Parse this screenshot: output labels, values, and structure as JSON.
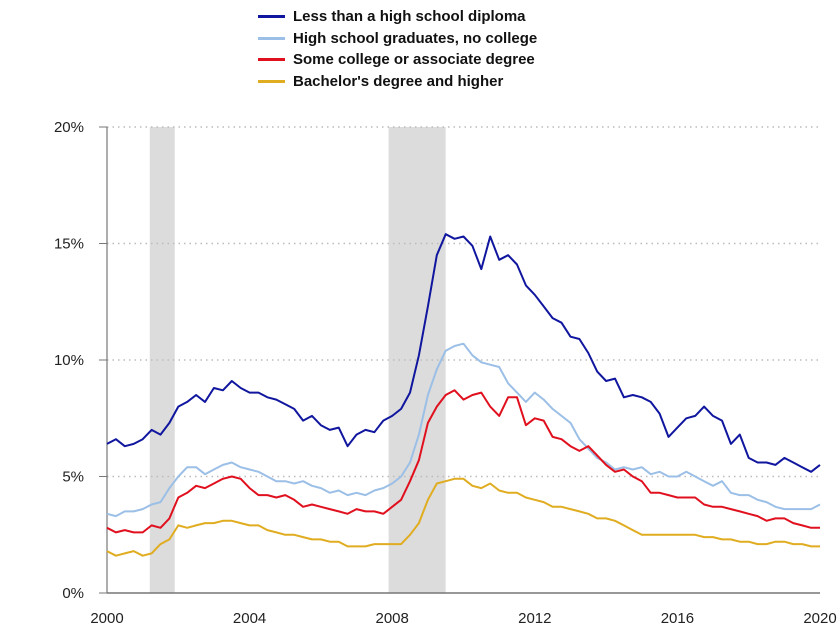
{
  "chart_data": {
    "type": "line",
    "title": "",
    "xlabel": "",
    "ylabel": "",
    "xlim": [
      2000,
      2020
    ],
    "ylim": [
      0,
      20
    ],
    "x_ticks": [
      2000,
      2004,
      2008,
      2012,
      2016,
      2020
    ],
    "x_tick_labels": [
      "2000",
      "2004",
      "2008",
      "2012",
      "2016",
      "2020"
    ],
    "y_ticks": [
      0,
      5,
      10,
      15,
      20
    ],
    "y_tick_labels": [
      "0%",
      "5%",
      "10%",
      "15%",
      "20%"
    ],
    "grid": "horizontal dotted",
    "legend_position": "top-center",
    "shaded_periods": [
      [
        2001.2,
        2001.9
      ],
      [
        2007.9,
        2009.5
      ]
    ],
    "x": [
      2000,
      2000.25,
      2000.5,
      2000.75,
      2001,
      2001.25,
      2001.5,
      2001.75,
      2002,
      2002.25,
      2002.5,
      2002.75,
      2003,
      2003.25,
      2003.5,
      2003.75,
      2004,
      2004.25,
      2004.5,
      2004.75,
      2005,
      2005.25,
      2005.5,
      2005.75,
      2006,
      2006.25,
      2006.5,
      2006.75,
      2007,
      2007.25,
      2007.5,
      2007.75,
      2008,
      2008.25,
      2008.5,
      2008.75,
      2009,
      2009.25,
      2009.5,
      2009.75,
      2010,
      2010.25,
      2010.5,
      2010.75,
      2011,
      2011.25,
      2011.5,
      2011.75,
      2012,
      2012.25,
      2012.5,
      2012.75,
      2013,
      2013.25,
      2013.5,
      2013.75,
      2014,
      2014.25,
      2014.5,
      2014.75,
      2015,
      2015.25,
      2015.5,
      2015.75,
      2016,
      2016.25,
      2016.5,
      2016.75,
      2017,
      2017.25,
      2017.5,
      2017.75,
      2018,
      2018.25,
      2018.5,
      2018.75,
      2019,
      2019.25,
      2019.5,
      2019.75,
      2020
    ],
    "series": [
      {
        "name": "Less than a high school diploma",
        "color": "#10169e",
        "values": [
          6.4,
          6.6,
          6.3,
          6.4,
          6.6,
          7.0,
          6.8,
          7.3,
          8.0,
          8.2,
          8.5,
          8.2,
          8.8,
          8.7,
          9.1,
          8.8,
          8.6,
          8.6,
          8.4,
          8.3,
          8.1,
          7.9,
          7.4,
          7.6,
          7.2,
          7.0,
          7.1,
          6.3,
          6.8,
          7.0,
          6.9,
          7.4,
          7.6,
          7.9,
          8.6,
          10.2,
          12.3,
          14.5,
          15.4,
          15.2,
          15.3,
          14.9,
          13.9,
          15.3,
          14.3,
          14.5,
          14.1,
          13.2,
          12.8,
          12.3,
          11.8,
          11.6,
          11.0,
          10.9,
          10.3,
          9.5,
          9.1,
          9.2,
          8.4,
          8.5,
          8.4,
          8.2,
          7.7,
          6.7,
          7.1,
          7.5,
          7.6,
          8.0,
          7.6,
          7.4,
          6.4,
          6.8,
          5.8,
          5.6,
          5.6,
          5.5,
          5.8,
          5.6,
          5.4,
          5.2,
          5.5
        ]
      },
      {
        "name": "High school graduates, no college",
        "color": "#9bbfe6",
        "values": [
          3.4,
          3.3,
          3.5,
          3.5,
          3.6,
          3.8,
          3.9,
          4.5,
          5.0,
          5.4,
          5.4,
          5.1,
          5.3,
          5.5,
          5.6,
          5.4,
          5.3,
          5.2,
          5.0,
          4.8,
          4.8,
          4.7,
          4.8,
          4.6,
          4.5,
          4.3,
          4.4,
          4.2,
          4.3,
          4.2,
          4.4,
          4.5,
          4.7,
          5.0,
          5.6,
          6.8,
          8.5,
          9.6,
          10.4,
          10.6,
          10.7,
          10.2,
          9.9,
          9.8,
          9.7,
          9.0,
          8.6,
          8.2,
          8.6,
          8.3,
          7.9,
          7.6,
          7.3,
          6.6,
          6.2,
          5.8,
          5.6,
          5.3,
          5.4,
          5.3,
          5.4,
          5.1,
          5.2,
          5.0,
          5.0,
          5.2,
          5.0,
          4.8,
          4.6,
          4.8,
          4.3,
          4.2,
          4.2,
          4.0,
          3.9,
          3.7,
          3.6,
          3.6,
          3.6,
          3.6,
          3.8
        ]
      },
      {
        "name": "Some college or associate degree",
        "color": "#e0101e",
        "values": [
          2.8,
          2.6,
          2.7,
          2.6,
          2.6,
          2.9,
          2.8,
          3.2,
          4.1,
          4.3,
          4.6,
          4.5,
          4.7,
          4.9,
          5.0,
          4.9,
          4.5,
          4.2,
          4.2,
          4.1,
          4.2,
          4.0,
          3.7,
          3.8,
          3.7,
          3.6,
          3.5,
          3.4,
          3.6,
          3.5,
          3.5,
          3.4,
          3.7,
          4.0,
          4.8,
          5.7,
          7.3,
          8.0,
          8.5,
          8.7,
          8.3,
          8.5,
          8.6,
          8.0,
          7.6,
          8.4,
          8.4,
          7.2,
          7.5,
          7.4,
          6.7,
          6.6,
          6.3,
          6.1,
          6.3,
          5.9,
          5.5,
          5.2,
          5.3,
          5.0,
          4.8,
          4.3,
          4.3,
          4.2,
          4.1,
          4.1,
          4.1,
          3.8,
          3.7,
          3.7,
          3.6,
          3.5,
          3.4,
          3.3,
          3.1,
          3.2,
          3.2,
          3.0,
          2.9,
          2.8,
          2.8
        ]
      },
      {
        "name": "Bachelor's degree and higher",
        "color": "#e0ac20",
        "values": [
          1.8,
          1.6,
          1.7,
          1.8,
          1.6,
          1.7,
          2.1,
          2.3,
          2.9,
          2.8,
          2.9,
          3.0,
          3.0,
          3.1,
          3.1,
          3.0,
          2.9,
          2.9,
          2.7,
          2.6,
          2.5,
          2.5,
          2.4,
          2.3,
          2.3,
          2.2,
          2.2,
          2.0,
          2.0,
          2.0,
          2.1,
          2.1,
          2.1,
          2.1,
          2.5,
          3.0,
          4.0,
          4.7,
          4.8,
          4.9,
          4.9,
          4.6,
          4.5,
          4.7,
          4.4,
          4.3,
          4.3,
          4.1,
          4.0,
          3.9,
          3.7,
          3.7,
          3.6,
          3.5,
          3.4,
          3.2,
          3.2,
          3.1,
          2.9,
          2.7,
          2.5,
          2.5,
          2.5,
          2.5,
          2.5,
          2.5,
          2.5,
          2.4,
          2.4,
          2.3,
          2.3,
          2.2,
          2.2,
          2.1,
          2.1,
          2.2,
          2.2,
          2.1,
          2.1,
          2.0,
          2.0
        ]
      }
    ],
    "colors": {
      "shading": "#dcdcdc",
      "grid": "#bbbbbb",
      "axis": "#777777"
    }
  }
}
